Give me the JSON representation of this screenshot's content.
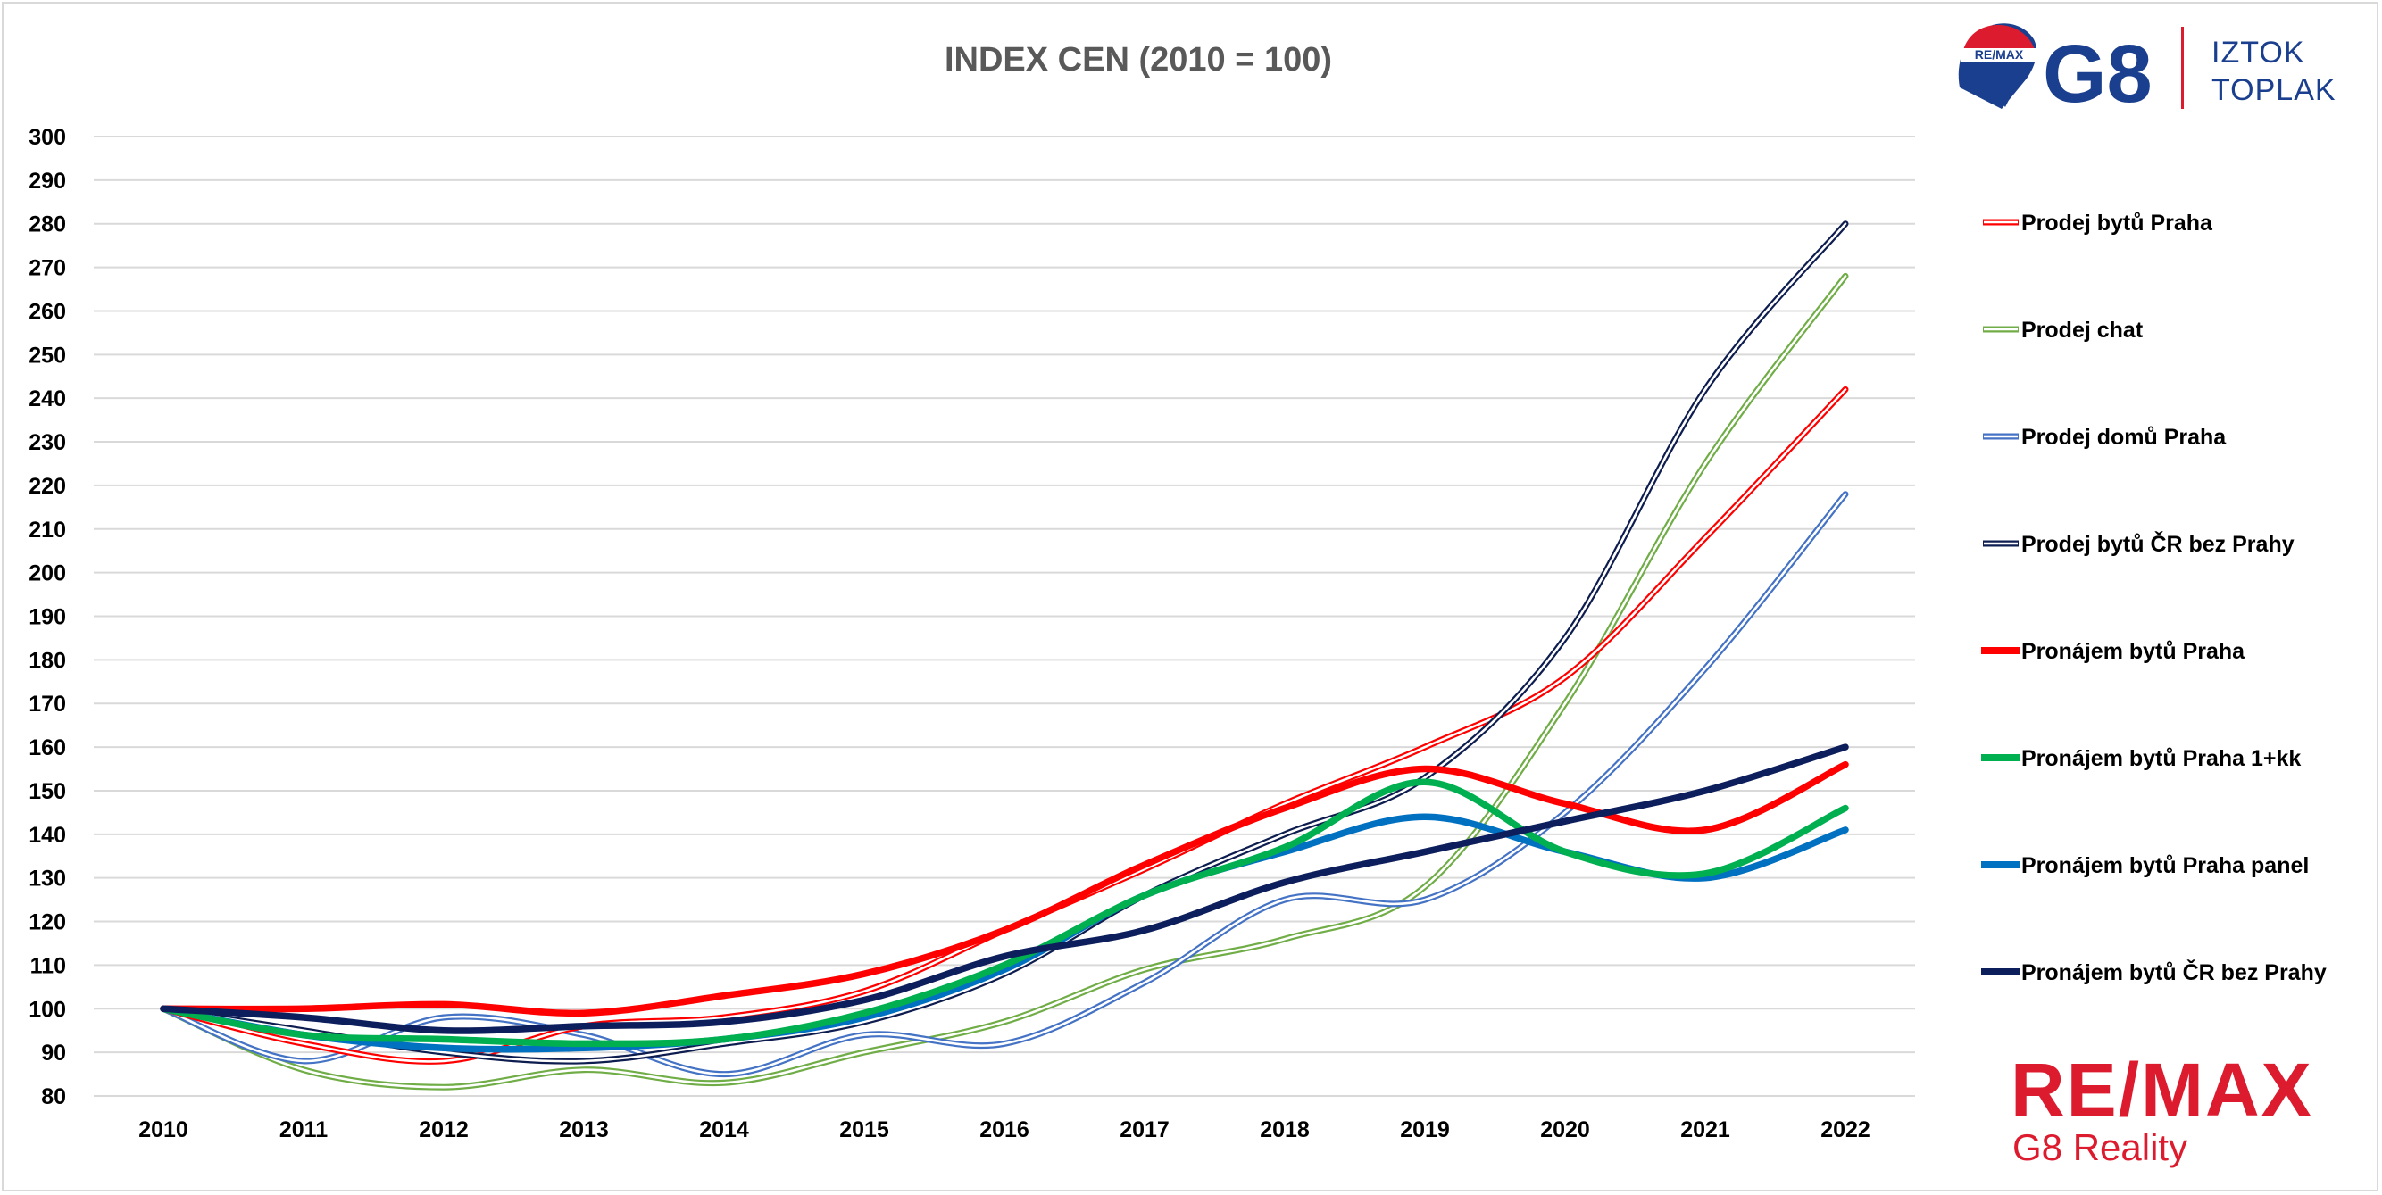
{
  "branding": {
    "balloon_text": "RE/MAX",
    "g8": "G8",
    "name_line1": "IZTOK",
    "name_line2": "TOPLAK",
    "remax_word": "RE/MAX",
    "remax_sub": "G8 Reality",
    "colors": {
      "blue": "#1b3f8f",
      "red": "#dc1c2e"
    }
  },
  "chart_data": {
    "type": "line",
    "title": "INDEX CEN (2010 = 100)",
    "xlabel": "",
    "ylabel": "",
    "x": [
      "2010",
      "2011",
      "2012",
      "2013",
      "2014",
      "2015",
      "2016",
      "2017",
      "2018",
      "2019",
      "2020",
      "2021",
      "2022"
    ],
    "ylim": [
      80,
      300
    ],
    "yticks": [
      80,
      90,
      100,
      110,
      120,
      130,
      140,
      150,
      160,
      170,
      180,
      190,
      200,
      210,
      220,
      230,
      240,
      250,
      260,
      270,
      280,
      290,
      300
    ],
    "grid": true,
    "legend_position": "right",
    "series": [
      {
        "name": "Prodej bytů Praha",
        "color": "#ff0000",
        "style": "double",
        "values": [
          100,
          92,
          88,
          96,
          98,
          104,
          118,
          132,
          147,
          160,
          176,
          208,
          242
        ]
      },
      {
        "name": "Prodej chat",
        "color": "#70ad47",
        "style": "double",
        "values": [
          100,
          86,
          82,
          86,
          83,
          90,
          97,
          109,
          116,
          128,
          170,
          225,
          268
        ]
      },
      {
        "name": "Prodej domů Praha",
        "color": "#4472c4",
        "style": "double",
        "values": [
          100,
          88,
          98,
          94,
          85,
          94,
          92,
          106,
          125,
          125,
          145,
          178,
          218
        ]
      },
      {
        "name": "Prodej bytů ČR bez Prahy",
        "color": "#0e1d4f",
        "style": "double",
        "values": [
          100,
          95,
          90,
          88,
          92,
          97,
          108,
          126,
          140,
          153,
          185,
          242,
          280
        ]
      },
      {
        "name": "Pronájem bytů Praha",
        "color": "#ff0000",
        "style": "bold",
        "values": [
          100,
          100,
          101,
          99,
          103,
          108,
          118,
          133,
          146,
          155,
          147,
          141,
          156
        ]
      },
      {
        "name": "Pronájem bytů Praha 1+kk",
        "color": "#00b050",
        "style": "bold",
        "values": [
          100,
          94,
          93,
          92,
          93,
          99,
          110,
          126,
          137,
          152,
          136,
          131,
          146
        ]
      },
      {
        "name": "Pronájem bytů Praha panel",
        "color": "#0070c0",
        "style": "bold",
        "values": [
          100,
          94,
          91,
          91,
          93,
          98,
          109,
          126,
          136,
          144,
          136,
          130,
          141
        ]
      },
      {
        "name": "Pronájem bytů ČR bez Prahy",
        "color": "#0d1e5c",
        "style": "bold",
        "values": [
          100,
          98,
          95,
          96,
          97,
          102,
          112,
          118,
          129,
          136,
          143,
          150,
          160
        ]
      }
    ]
  }
}
